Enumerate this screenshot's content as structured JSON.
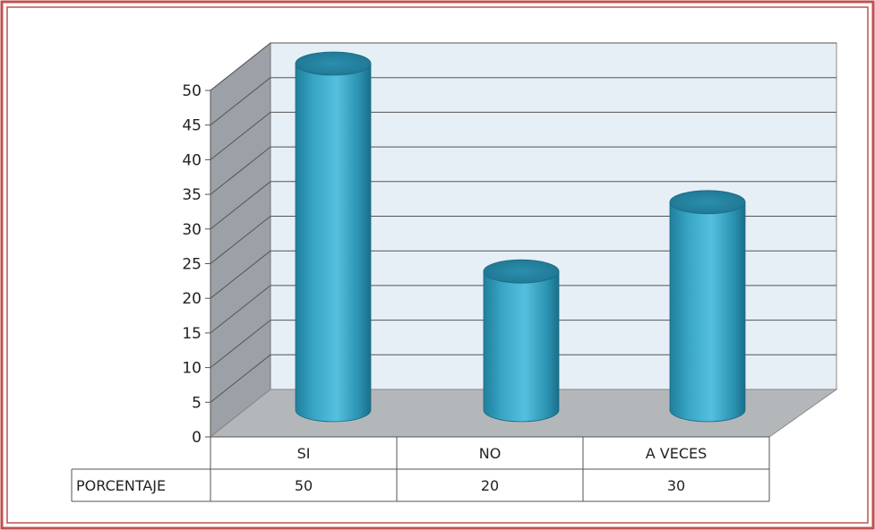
{
  "chart_data": {
    "type": "bar",
    "subtype": "3d-cylinder",
    "categories": [
      "SI",
      "NO",
      "A VECES"
    ],
    "series": [
      {
        "name": "PORCENTAJE",
        "values": [
          50,
          20,
          30
        ]
      }
    ],
    "ylim": [
      0,
      50
    ],
    "yticks": [
      0,
      5,
      10,
      15,
      20,
      25,
      30,
      35,
      40,
      45,
      50
    ],
    "grid": true,
    "legend": "none",
    "data_table": true,
    "bar_color": "#4bb8d8",
    "wall_color": "#e6eef6",
    "side_wall_color": "#9aa0a6",
    "floor_color": "#b5b8bb",
    "frame_color": "#c0504d"
  }
}
